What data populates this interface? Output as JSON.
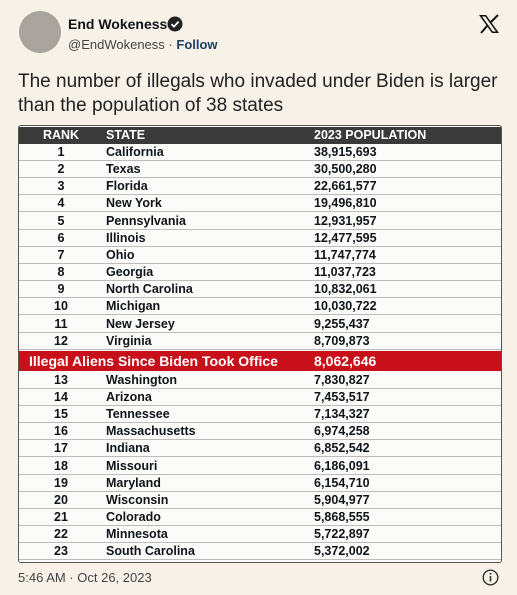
{
  "tweet": {
    "author": {
      "name": "End Wokeness",
      "handle": "@EndWokeness",
      "separator": "·",
      "follow": "Follow"
    },
    "text": "The number of illegals who invaded under Biden is larger than the population of 38 states",
    "table": {
      "headers": [
        "RANK",
        "STATE",
        "2023 POPULATION"
      ],
      "rows_top": [
        [
          1,
          "California",
          "38,915,693"
        ],
        [
          2,
          "Texas",
          "30,500,280"
        ],
        [
          3,
          "Florida",
          "22,661,577"
        ],
        [
          4,
          "New York",
          "19,496,810"
        ],
        [
          5,
          "Pennsylvania",
          "12,931,957"
        ],
        [
          6,
          "Illinois",
          "12,477,595"
        ],
        [
          7,
          "Ohio",
          "11,747,774"
        ],
        [
          8,
          "Georgia",
          "11,037,723"
        ],
        [
          9,
          "North Carolina",
          "10,832,061"
        ],
        [
          10,
          "Michigan",
          "10,030,722"
        ],
        [
          11,
          "New Jersey",
          "9,255,437"
        ],
        [
          12,
          "Virginia",
          "8,709,873"
        ]
      ],
      "highlight": {
        "label": "Illegal Aliens Since Biden Took Office",
        "population": "8,062,646"
      },
      "rows_bottom": [
        [
          13,
          "Washington",
          "7,830,827"
        ],
        [
          14,
          "Arizona",
          "7,453,517"
        ],
        [
          15,
          "Tennessee",
          "7,134,327"
        ],
        [
          16,
          "Massachusetts",
          "6,974,258"
        ],
        [
          17,
          "Indiana",
          "6,852,542"
        ],
        [
          18,
          "Missouri",
          "6,186,091"
        ],
        [
          19,
          "Maryland",
          "6,154,710"
        ],
        [
          20,
          "Wisconsin",
          "5,904,977"
        ],
        [
          21,
          "Colorado",
          "5,868,555"
        ],
        [
          22,
          "Minnesota",
          "5,722,897"
        ],
        [
          23,
          "South Carolina",
          "5,372,002"
        ]
      ]
    },
    "timestamp": "5:46 AM · Oct 26, 2023"
  }
}
